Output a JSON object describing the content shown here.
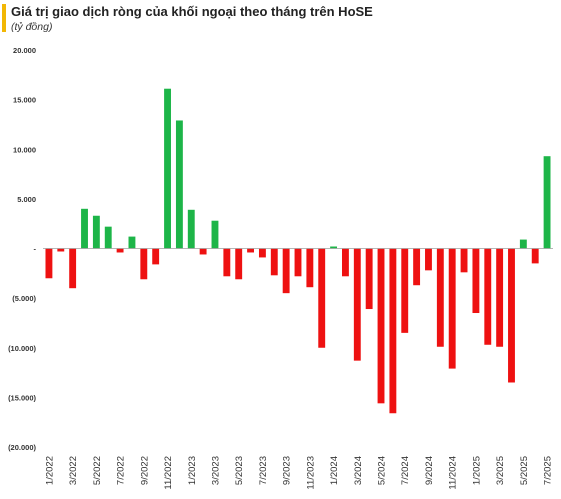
{
  "title": "Giá trị giao dịch ròng của khối ngoại theo tháng trên HoSE",
  "subtitle": "(tỷ đồng)",
  "colors": {
    "accent": "#f2b705",
    "positive": "#1db548",
    "negative": "#ee1111",
    "zero_line": "#9e9e9e"
  },
  "chart_data": {
    "type": "bar",
    "categories": [
      "1/2022",
      "2/2022",
      "3/2022",
      "4/2022",
      "5/2022",
      "6/2022",
      "7/2022",
      "8/2022",
      "9/2022",
      "10/2022",
      "11/2022",
      "12/2022",
      "1/2023",
      "2/2023",
      "3/2023",
      "4/2023",
      "5/2023",
      "6/2023",
      "7/2023",
      "8/2023",
      "9/2023",
      "10/2023",
      "11/2023",
      "12/2023",
      "1/2024",
      "2/2024",
      "3/2024",
      "4/2024",
      "5/2024",
      "6/2024",
      "7/2024",
      "8/2024",
      "9/2024",
      "10/2024",
      "11/2024",
      "12/2024",
      "1/2025",
      "2/2025",
      "3/2025",
      "4/2025",
      "5/2025",
      "6/2025",
      "7/2025"
    ],
    "x_tick_labels": [
      "1/2022",
      "3/2022",
      "5/2022",
      "7/2022",
      "9/2022",
      "11/2022",
      "1/2023",
      "3/2023",
      "5/2023",
      "7/2023",
      "9/2023",
      "11/2023",
      "1/2024",
      "3/2024",
      "5/2024",
      "7/2024",
      "9/2024",
      "11/2024",
      "1/2025",
      "3/2025",
      "5/2025",
      "7/2025"
    ],
    "values": [
      -3000,
      -300,
      -4000,
      4000,
      3300,
      2200,
      -400,
      1200,
      -3100,
      -1600,
      16100,
      12900,
      3900,
      -600,
      2800,
      -2800,
      -3100,
      -400,
      -900,
      -2700,
      -4500,
      -2800,
      -3900,
      -10000,
      200,
      -2800,
      -11300,
      -6100,
      -15600,
      -16600,
      -8500,
      -3700,
      -2200,
      -9900,
      -12100,
      -2400,
      -6500,
      -9700,
      -9900,
      -13500,
      900,
      -1500,
      9300
    ],
    "y_tick_labels": [
      "20.000",
      "15.000",
      "10.000",
      "5.000",
      "-",
      "(5.000)",
      "(10.000)",
      "(15.000)",
      "(20.000)"
    ],
    "ylim": [
      -20000,
      20000
    ],
    "xlabel": "",
    "ylabel": ""
  }
}
